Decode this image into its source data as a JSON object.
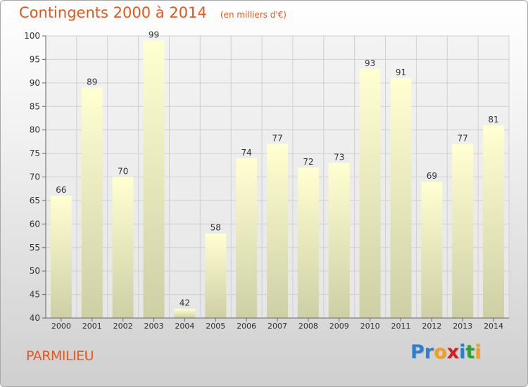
{
  "header": {
    "title": "Contingents 2000 à 2014",
    "subtitle": "(en milliers d'€)"
  },
  "footer": {
    "location": "PARMILIEU",
    "logo_text": "Proxiti",
    "logo_letters": [
      {
        "char": "P",
        "color": "#2a7fd0"
      },
      {
        "char": "r",
        "color": "#2a7fd0"
      },
      {
        "char": "o",
        "color": "#f0a020"
      },
      {
        "char": "x",
        "color": "#d02020"
      },
      {
        "char": "i",
        "color": "#2a7fd0"
      },
      {
        "char": "t",
        "color": "#30a030"
      },
      {
        "char": "i",
        "color": "#f0a020"
      }
    ]
  },
  "chart_data": {
    "type": "bar",
    "title": "Contingents 2000 à 2014",
    "subtitle": "(en milliers d'€)",
    "xlabel": "",
    "ylabel": "",
    "categories": [
      "2000",
      "2001",
      "2002",
      "2003",
      "2004",
      "2005",
      "2006",
      "2007",
      "2008",
      "2009",
      "2010",
      "2011",
      "2012",
      "2013",
      "2014"
    ],
    "values": [
      66,
      89,
      70,
      99,
      42,
      58,
      74,
      77,
      72,
      73,
      93,
      91,
      69,
      77,
      81
    ],
    "ylim": [
      40,
      100
    ],
    "yticks": [
      40,
      45,
      50,
      55,
      60,
      65,
      70,
      75,
      80,
      85,
      90,
      95,
      100
    ],
    "grid": true,
    "data_labels": true,
    "colors": {
      "bar_top": "#ffffd2",
      "bar_bottom": "#cfcfa6",
      "grid": "#d0d0d0",
      "axis": "#666666",
      "title": "#e8561e"
    }
  }
}
